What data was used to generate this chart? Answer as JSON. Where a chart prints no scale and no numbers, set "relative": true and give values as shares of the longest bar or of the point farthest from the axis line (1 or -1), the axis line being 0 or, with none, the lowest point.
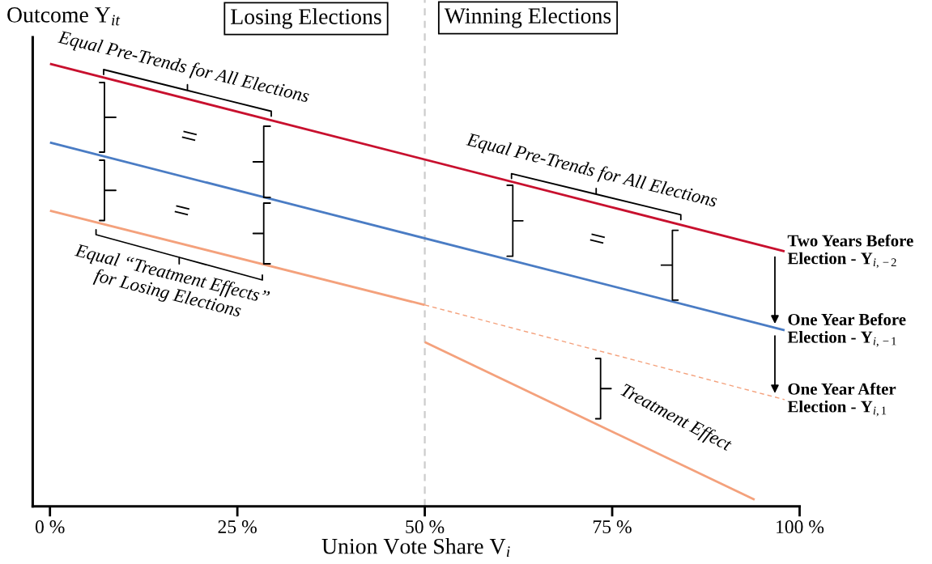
{
  "chart_data": {
    "type": "line",
    "relative": true,
    "xlabel": "Union Vote Share V$_{i}$",
    "ylabel": "Outcome Y$_{it}$",
    "xlim": [
      -2.3,
      100
    ],
    "xticks": [
      {
        "value": 0,
        "label": "0 %"
      },
      {
        "value": 25,
        "label": "25 %"
      },
      {
        "value": 50,
        "label": "50 %"
      },
      {
        "value": 75,
        "label": "75 %"
      },
      {
        "value": 100,
        "label": "100 %"
      }
    ],
    "series": [
      {
        "name": "Two Years Before\nElection - Y$_{i,−2}$",
        "color": "#c8102e",
        "x": [
          0,
          98
        ],
        "values": [
          1,
          0.576
        ]
      },
      {
        "name": "One Year Before\nElection - Y$_{i,−1}$",
        "color": "#4a7cc4",
        "x": [
          0,
          98
        ],
        "values": [
          0.822,
          0.398
        ]
      },
      {
        "color": "#f4a17c",
        "x": [
          0,
          50
        ],
        "values": [
          0.668,
          0.455
        ]
      },
      {
        "name": "One Year After\nElection - Y$_{i,1}$",
        "color": "#f4a17c",
        "x": [
          50,
          98
        ],
        "values": [
          0.455,
          0.241
        ],
        "line_style": "dashed"
      },
      {
        "color": "#f4a17c",
        "x": [
          50,
          94
        ],
        "values": [
          0.371,
          0.015
        ]
      }
    ],
    "ref_lines": [
      {
        "axis": "x",
        "value": 50,
        "color": "#cccccc",
        "line_style": "dashed"
      }
    ],
    "annotations": [
      "Losing Elections",
      "Winning Elections",
      "Equal Pre-Trends for All Elections",
      "=",
      "=",
      "Equal “Treatment Effects”\nfor Losing Elections",
      "Equal Pre-Trends for All Elections",
      "=",
      "Treatment Effect"
    ]
  }
}
